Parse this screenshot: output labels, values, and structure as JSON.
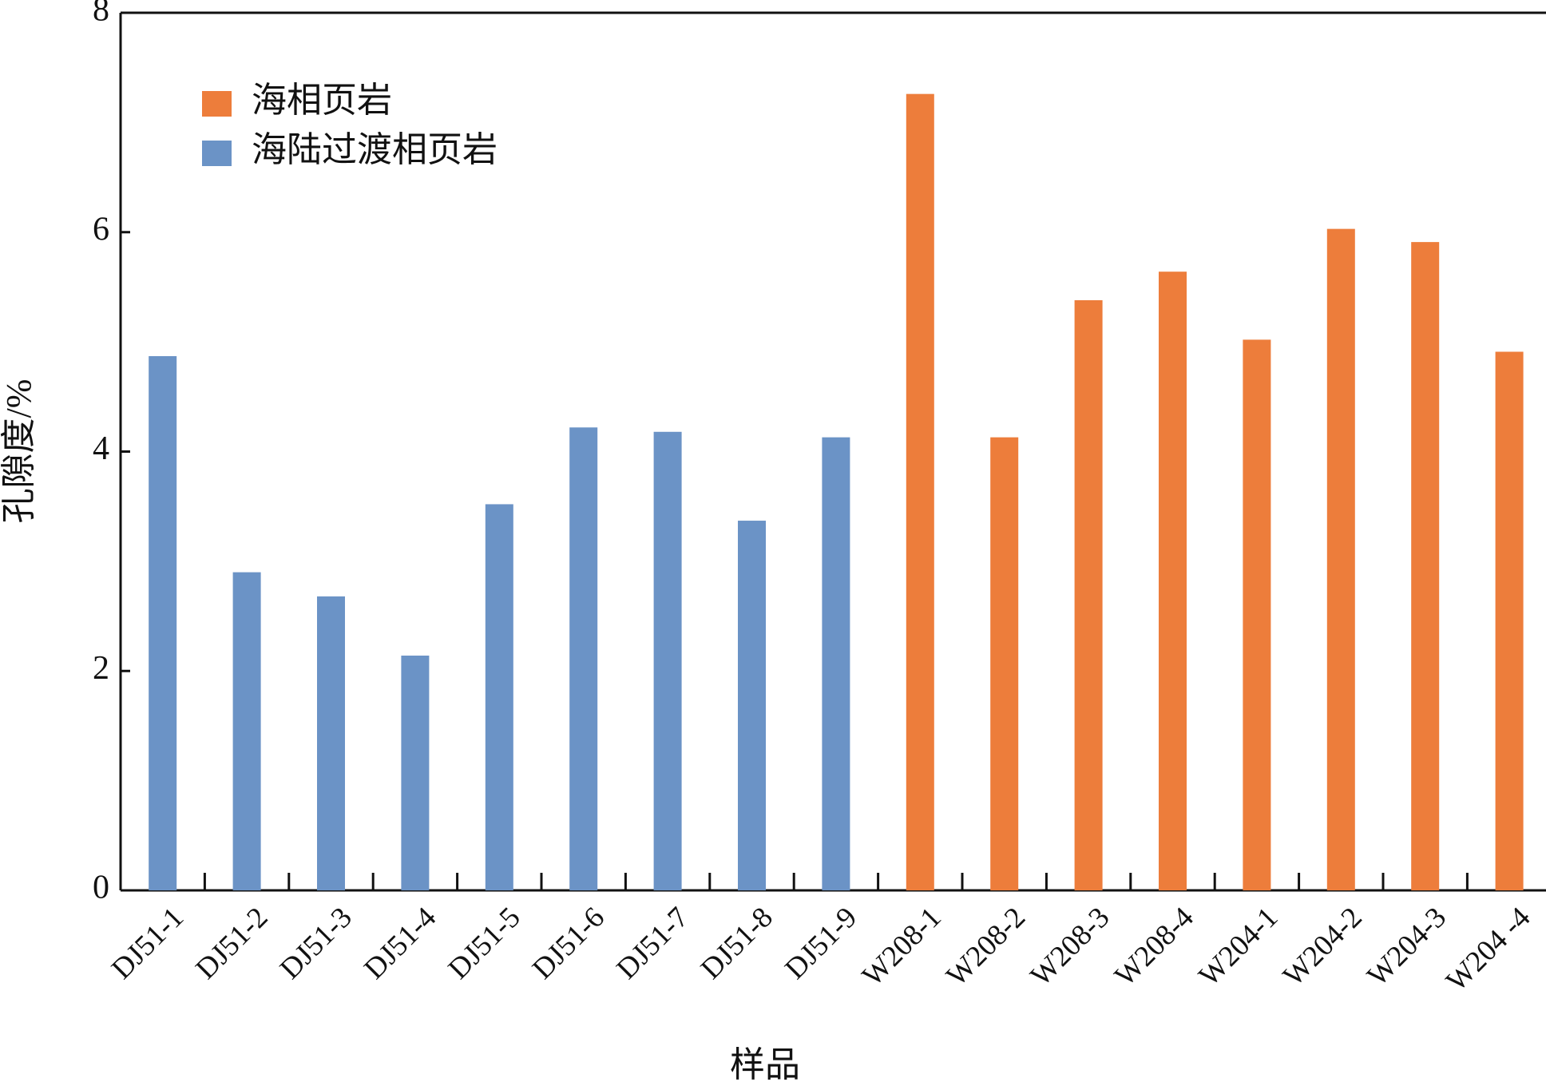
{
  "chart_data": {
    "type": "bar",
    "x_label": "样品",
    "y_label": "孔隙度/%",
    "categories": [
      "DJ51-1",
      "DJ51-2",
      "DJ51-3",
      "DJ51-4",
      "DJ51-5",
      "DJ51-6",
      "DJ51-7",
      "DJ51-8",
      "DJ51-9",
      "W208-1",
      "W208-2",
      "W208-3",
      "W208-4",
      "W204-1",
      "W204-2",
      "W204-3",
      "W204 -4"
    ],
    "series": [
      {
        "name": "海相页岩",
        "color": "#ed7d3b",
        "values": [
          null,
          null,
          null,
          null,
          null,
          null,
          null,
          null,
          null,
          7.26,
          4.13,
          5.38,
          5.64,
          5.02,
          6.03,
          5.91,
          4.91
        ]
      },
      {
        "name": "海陆过渡相页岩",
        "color": "#6b93c6",
        "values": [
          4.87,
          2.9,
          2.68,
          2.14,
          3.52,
          4.22,
          4.18,
          3.37,
          4.13,
          null,
          null,
          null,
          null,
          null,
          null,
          null,
          null
        ]
      }
    ],
    "ylim": [
      0,
      8
    ],
    "yticks": [
      0,
      2,
      4,
      6,
      8
    ],
    "legend": "upper left"
  }
}
